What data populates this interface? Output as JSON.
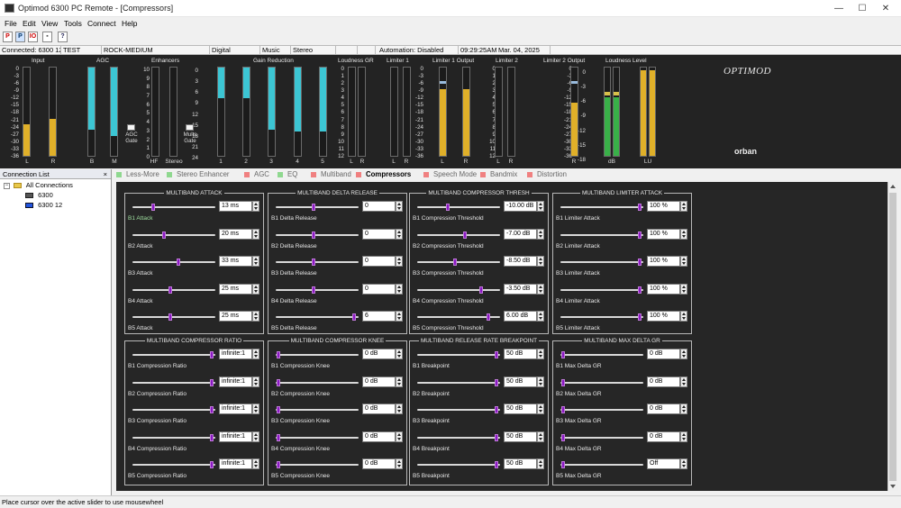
{
  "window": {
    "title": "Optimod 6300 PC Remote - [Compressors]",
    "min": "—",
    "max": "☐",
    "close": "✕"
  },
  "menu": [
    "File",
    "Edit",
    "View",
    "Tools",
    "Connect",
    "Help"
  ],
  "toolbar": [
    "P",
    "P",
    "IO",
    "▪",
    "?"
  ],
  "status": {
    "connected": "Connected: 6300 12",
    "name": "TEST",
    "preset": "ROCK-MEDIUM",
    "input": "Digital",
    "source": "Music",
    "mode": "Stereo",
    "automation": "Automation: Disabled",
    "time": "09:29:25AM",
    "date": "Mar. 04, 2025"
  },
  "meters": {
    "groups": [
      "Input",
      "AGC",
      "Enhancers",
      "Gain Reduction",
      "Loudness GR",
      "Limiter 1",
      "Limiter 1 Output",
      "Limiter 2",
      "Limiter 2 Output",
      "Loudness Level"
    ],
    "scale_db": [
      "0",
      "-3",
      "-6",
      "-9",
      "-12",
      "-15",
      "-18",
      "-21",
      "-24",
      "-27",
      "-30",
      "-33",
      "-36"
    ],
    "scale_agc": [
      "10",
      "9",
      "8",
      "7",
      "6",
      "5",
      "4",
      "3",
      "2",
      "1",
      "0"
    ],
    "scale_gr": [
      "0",
      "3",
      "6",
      "9",
      "12",
      "15",
      "18",
      "21",
      "24"
    ],
    "scale_lim": [
      "0",
      "1",
      "2",
      "3",
      "4",
      "5",
      "6",
      "7",
      "8",
      "9",
      "10",
      "11",
      "12"
    ],
    "scale_out": [
      "0",
      "-3",
      "-6",
      "-9",
      "-12",
      "-15",
      "-18",
      "-21",
      "-24",
      "-27",
      "-30",
      "-33",
      "-36"
    ],
    "scale_loud": [
      "0",
      "-3",
      "-6",
      "-9",
      "-12",
      "-15",
      "-18"
    ],
    "labels": {
      "L": "L",
      "R": "R",
      "B": "B",
      "M": "M",
      "HF": "HF",
      "Stereo": "Stereo",
      "db": "dB",
      "lu": "LU",
      "b1": "1",
      "b2": "2",
      "b3": "3",
      "b4": "4",
      "b5": "5",
      "agc_gate": "AGC\nGate",
      "mults_gate": "Mults\nGate"
    },
    "logo": "OPTIMOD",
    "brand": "orban",
    "levels": {
      "input_l": 0.36,
      "input_r": 0.42,
      "agc_b": 0.7,
      "agc_m": 0.78,
      "gr1": 0.35,
      "gr2": 0.35,
      "gr3": 0.7,
      "gr4": 0.72,
      "gr5": 0.72,
      "lim1_l": 0.76,
      "lim1_r": 0.76,
      "lim2_l": 0.6,
      "lim2_r": 0.6,
      "loud_l": 0.66,
      "loud_r": 0.66,
      "lu_l": 0.96,
      "lu_r": 0.96
    }
  },
  "connections": {
    "header": "Connection List",
    "close": "×",
    "root": "All Connections",
    "items": [
      "6300",
      "6300 12"
    ]
  },
  "tabs": [
    "Less-More",
    "Stereo Enhancer",
    "AGC",
    "EQ",
    "Multiband",
    "Compressors",
    "Speech Mode",
    "Bandmix",
    "Distortion"
  ],
  "tab_colors": [
    "#8fd88f",
    "#8fd88f",
    "#f08080",
    "#8fd88f",
    "#f08080",
    "#f08080",
    "#f08080",
    "#f08080",
    "#f08080"
  ],
  "active_tab": "Compressors",
  "groups": [
    {
      "title": "MULTIBAND ATTACK",
      "params": [
        {
          "label": "B1 Attack",
          "value": "13 ms",
          "pos": 0.24,
          "green": true
        },
        {
          "label": "B2 Attack",
          "value": "20 ms",
          "pos": 0.38
        },
        {
          "label": "B3 Attack",
          "value": "33 ms",
          "pos": 0.56
        },
        {
          "label": "B4 Attack",
          "value": "25 ms",
          "pos": 0.46
        },
        {
          "label": "B5 Attack",
          "value": "25 ms",
          "pos": 0.46
        }
      ]
    },
    {
      "title": "MULTIBAND DELTA RELEASE",
      "params": [
        {
          "label": "B1 Delta Release",
          "value": "0",
          "pos": 0.46
        },
        {
          "label": "B2 Delta Release",
          "value": "0",
          "pos": 0.46
        },
        {
          "label": "B3 Delta Release",
          "value": "0",
          "pos": 0.46
        },
        {
          "label": "B4 Delta Release",
          "value": "0",
          "pos": 0.46
        },
        {
          "label": "B5 Delta Release",
          "value": "6",
          "pos": 0.97
        }
      ]
    },
    {
      "title": "MULTIBAND COMPRESSOR THRESH",
      "params": [
        {
          "label": "B1 Compression Threshold",
          "value": "-10.00 dB",
          "pos": 0.36
        },
        {
          "label": "B2 Compression Threshold",
          "value": "-7.00 dB",
          "pos": 0.58
        },
        {
          "label": "B3 Compression Threshold",
          "value": "-8.50 dB",
          "pos": 0.46
        },
        {
          "label": "B4 Compression Threshold",
          "value": "-3.50 dB",
          "pos": 0.78
        },
        {
          "label": "B5 Compression Threshold",
          "value": "6.00 dB",
          "pos": 0.88
        }
      ]
    },
    {
      "title": "MULTIBAND LIMITER ATTACK",
      "params": [
        {
          "label": "B1 Limiter Attack",
          "value": "100 %",
          "pos": 0.98
        },
        {
          "label": "B2 Limiter Attack",
          "value": "100 %",
          "pos": 0.98
        },
        {
          "label": "B3 Limiter Attack",
          "value": "100 %",
          "pos": 0.98
        },
        {
          "label": "B4 Limiter Attack",
          "value": "100 %",
          "pos": 0.98
        },
        {
          "label": "B5 Limiter Attack",
          "value": "100 %",
          "pos": 0.98
        }
      ]
    },
    {
      "title": "MULTIBAND COMPRESSOR RATIO",
      "params": [
        {
          "label": "B1 Compression Ratio",
          "value": "infinite:1",
          "pos": 0.98
        },
        {
          "label": "B2 Compression Ratio",
          "value": "infinite:1",
          "pos": 0.98
        },
        {
          "label": "B3 Compression Ratio",
          "value": "infinite:1",
          "pos": 0.98
        },
        {
          "label": "B4 Compression Ratio",
          "value": "infinite:1",
          "pos": 0.98
        },
        {
          "label": "B5 Compression Ratio",
          "value": "infinite:1",
          "pos": 0.98
        }
      ]
    },
    {
      "title": "MULTIBAND COMPRESSOR KNEE",
      "params": [
        {
          "label": "B1 Compression Knee",
          "value": "0 dB",
          "pos": 0.01
        },
        {
          "label": "B2 Compression Knee",
          "value": "0 dB",
          "pos": 0.01
        },
        {
          "label": "B3 Compression Knee",
          "value": "0 dB",
          "pos": 0.01
        },
        {
          "label": "B4 Compression Knee",
          "value": "0 dB",
          "pos": 0.01
        },
        {
          "label": "B5 Compression Knee",
          "value": "0 dB",
          "pos": 0.01
        }
      ]
    },
    {
      "title": "MULTIBAND RELEASE RATE BREAKPOINT",
      "params": [
        {
          "label": "B1 Breakpoint",
          "value": "50 dB",
          "pos": 0.98
        },
        {
          "label": "B2 Breakpoint",
          "value": "50 dB",
          "pos": 0.98
        },
        {
          "label": "B3 Breakpoint",
          "value": "50 dB",
          "pos": 0.98
        },
        {
          "label": "B4 Breakpoint",
          "value": "50 dB",
          "pos": 0.98
        },
        {
          "label": "B5 Breakpoint",
          "value": "50 dB",
          "pos": 0.98
        }
      ]
    },
    {
      "title": "MULTIBAND MAX DELTA GR",
      "params": [
        {
          "label": "B1 Max Delta GR",
          "value": "0 dB",
          "pos": 0.01
        },
        {
          "label": "B2 Max Delta GR",
          "value": "0 dB",
          "pos": 0.01
        },
        {
          "label": "B3 Max Delta GR",
          "value": "0 dB",
          "pos": 0.01
        },
        {
          "label": "B4 Max Delta GR",
          "value": "0 dB",
          "pos": 0.01
        },
        {
          "label": "B5 Max Delta GR",
          "value": "Off",
          "pos": 0.01
        }
      ]
    }
  ],
  "bottom_status": "Place cursor over the active slider to use mousewheel"
}
